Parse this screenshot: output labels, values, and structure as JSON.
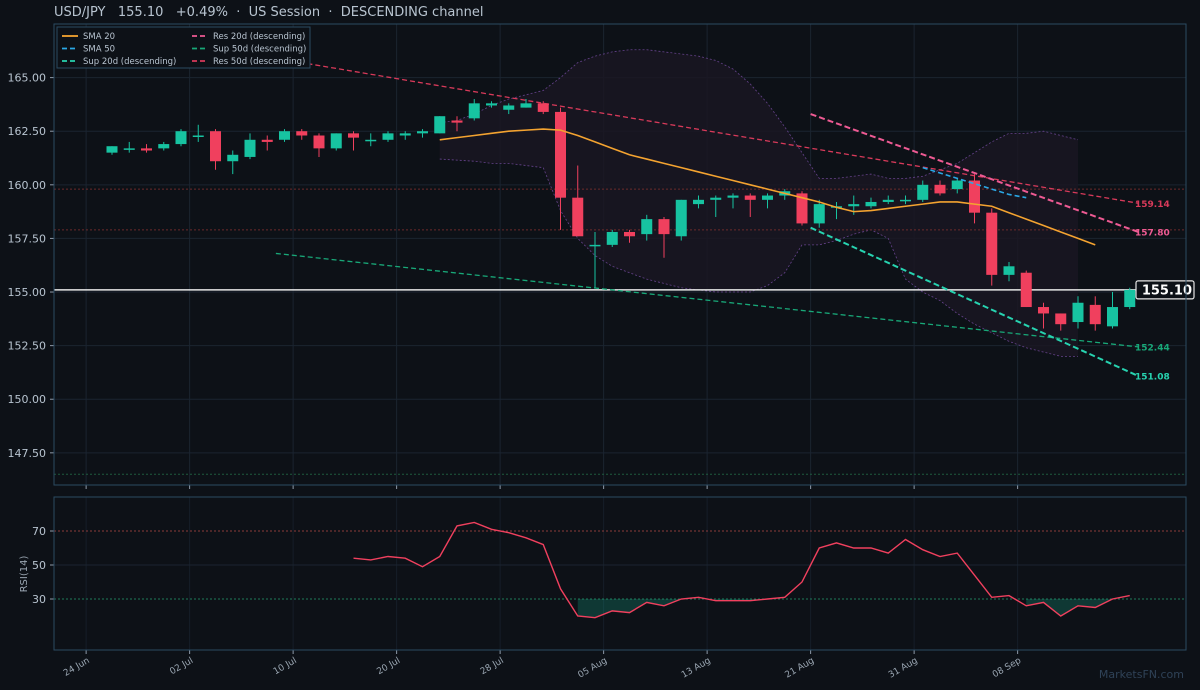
{
  "header": {
    "title": "USD/JPY   155.10   +0.49%  ·  US Session  ·  DESCENDING channel"
  },
  "watermark": "MarketsFN.com",
  "colors": {
    "background": "#0d1117",
    "up": "#17c3a1",
    "down": "#f0405e",
    "sma20": "#f4a330",
    "sma50": "#2aa8e6",
    "res20": "#ee5a93",
    "res50": "#d83a5a",
    "sup20": "#27d3b0",
    "sup50": "#18a878",
    "rsi": "#f0405e",
    "band": "#7a4fa8"
  },
  "chart_data": {
    "type": "candlestick",
    "symbol": "USD/JPY",
    "last_price": "155.10",
    "ylim": [
      146,
      167.5
    ],
    "yticks": [
      147.5,
      150,
      152.5,
      155,
      157.5,
      160,
      162.5,
      165
    ],
    "ytick_labels": [
      "147.50",
      "150.00",
      "152.50",
      "155.00",
      "157.50",
      "160.00",
      "162.50",
      "165.00"
    ],
    "xticks": [
      {
        "label": "24 Jun",
        "i": -1.5
      },
      {
        "label": "02 Jul",
        "i": 4.5
      },
      {
        "label": "10 Jul",
        "i": 10.5
      },
      {
        "label": "20 Jul",
        "i": 16.5
      },
      {
        "label": "28 Jul",
        "i": 22.5
      },
      {
        "label": "05 Aug",
        "i": 28.5
      },
      {
        "label": "13 Aug",
        "i": 34.5
      },
      {
        "label": "21 Aug",
        "i": 40.5
      },
      {
        "label": "31 Aug",
        "i": 46.5
      },
      {
        "label": "08 Sep",
        "i": 52.5
      }
    ],
    "candles": [
      {
        "o": 161.5,
        "h": 161.8,
        "l": 161.4,
        "c": 161.8
      },
      {
        "o": 161.7,
        "h": 162.0,
        "l": 161.5,
        "c": 161.7
      },
      {
        "o": 161.7,
        "h": 161.9,
        "l": 161.5,
        "c": 161.6
      },
      {
        "o": 161.7,
        "h": 162.0,
        "l": 161.6,
        "c": 161.9
      },
      {
        "o": 161.9,
        "h": 162.6,
        "l": 161.8,
        "c": 162.5
      },
      {
        "o": 162.3,
        "h": 162.8,
        "l": 162.0,
        "c": 162.3
      },
      {
        "o": 162.5,
        "h": 162.6,
        "l": 160.7,
        "c": 161.1
      },
      {
        "o": 161.1,
        "h": 161.6,
        "l": 160.5,
        "c": 161.4
      },
      {
        "o": 161.3,
        "h": 162.4,
        "l": 161.2,
        "c": 162.1
      },
      {
        "o": 162.1,
        "h": 162.3,
        "l": 161.6,
        "c": 162.0
      },
      {
        "o": 162.1,
        "h": 162.6,
        "l": 162.0,
        "c": 162.5
      },
      {
        "o": 162.5,
        "h": 162.6,
        "l": 162.1,
        "c": 162.3
      },
      {
        "o": 162.3,
        "h": 162.4,
        "l": 161.3,
        "c": 161.7
      },
      {
        "o": 161.7,
        "h": 162.4,
        "l": 161.6,
        "c": 162.4
      },
      {
        "o": 162.4,
        "h": 162.5,
        "l": 161.6,
        "c": 162.2
      },
      {
        "o": 162.1,
        "h": 162.4,
        "l": 161.8,
        "c": 162.1
      },
      {
        "o": 162.1,
        "h": 162.5,
        "l": 162.0,
        "c": 162.4
      },
      {
        "o": 162.3,
        "h": 162.5,
        "l": 162.1,
        "c": 162.4
      },
      {
        "o": 162.4,
        "h": 162.6,
        "l": 162.2,
        "c": 162.5
      },
      {
        "o": 162.4,
        "h": 163.2,
        "l": 162.4,
        "c": 163.2
      },
      {
        "o": 163.0,
        "h": 163.2,
        "l": 162.5,
        "c": 162.9
      },
      {
        "o": 163.1,
        "h": 164.0,
        "l": 163.0,
        "c": 163.8
      },
      {
        "o": 163.7,
        "h": 163.9,
        "l": 163.6,
        "c": 163.8
      },
      {
        "o": 163.5,
        "h": 163.8,
        "l": 163.3,
        "c": 163.7
      },
      {
        "o": 163.6,
        "h": 164.0,
        "l": 163.6,
        "c": 163.8
      },
      {
        "o": 163.8,
        "h": 163.9,
        "l": 163.3,
        "c": 163.4
      },
      {
        "o": 163.4,
        "h": 163.6,
        "l": 157.9,
        "c": 159.4
      },
      {
        "o": 159.4,
        "h": 160.9,
        "l": 157.6,
        "c": 157.6
      },
      {
        "o": 157.2,
        "h": 157.8,
        "l": 155.2,
        "c": 157.2
      },
      {
        "o": 157.2,
        "h": 157.9,
        "l": 157.1,
        "c": 157.8
      },
      {
        "o": 157.8,
        "h": 157.9,
        "l": 157.3,
        "c": 157.6
      },
      {
        "o": 157.7,
        "h": 158.6,
        "l": 157.4,
        "c": 158.4
      },
      {
        "o": 158.4,
        "h": 158.5,
        "l": 156.6,
        "c": 157.7
      },
      {
        "o": 157.6,
        "h": 159.3,
        "l": 157.4,
        "c": 159.3
      },
      {
        "o": 159.1,
        "h": 159.5,
        "l": 158.9,
        "c": 159.3
      },
      {
        "o": 159.3,
        "h": 159.5,
        "l": 158.5,
        "c": 159.4
      },
      {
        "o": 159.4,
        "h": 159.6,
        "l": 158.9,
        "c": 159.5
      },
      {
        "o": 159.5,
        "h": 159.6,
        "l": 158.5,
        "c": 159.3
      },
      {
        "o": 159.3,
        "h": 159.6,
        "l": 158.9,
        "c": 159.5
      },
      {
        "o": 159.5,
        "h": 159.8,
        "l": 159.3,
        "c": 159.7
      },
      {
        "o": 159.6,
        "h": 159.7,
        "l": 158.1,
        "c": 158.2
      },
      {
        "o": 158.2,
        "h": 159.3,
        "l": 158.0,
        "c": 159.1
      },
      {
        "o": 159.0,
        "h": 159.2,
        "l": 158.4,
        "c": 159.0
      },
      {
        "o": 159.0,
        "h": 159.5,
        "l": 158.6,
        "c": 159.1
      },
      {
        "o": 159.0,
        "h": 159.4,
        "l": 158.9,
        "c": 159.2
      },
      {
        "o": 159.2,
        "h": 159.5,
        "l": 159.1,
        "c": 159.3
      },
      {
        "o": 159.3,
        "h": 159.5,
        "l": 159.1,
        "c": 159.3
      },
      {
        "o": 159.3,
        "h": 160.2,
        "l": 159.2,
        "c": 160.0
      },
      {
        "o": 160.0,
        "h": 160.2,
        "l": 159.5,
        "c": 159.6
      },
      {
        "o": 159.8,
        "h": 160.3,
        "l": 159.6,
        "c": 160.2
      },
      {
        "o": 160.2,
        "h": 160.5,
        "l": 158.2,
        "c": 158.7
      },
      {
        "o": 158.7,
        "h": 158.9,
        "l": 155.3,
        "c": 155.8
      },
      {
        "o": 155.8,
        "h": 156.4,
        "l": 155.5,
        "c": 156.2
      },
      {
        "o": 155.9,
        "h": 156.0,
        "l": 154.3,
        "c": 154.3
      },
      {
        "o": 154.3,
        "h": 154.5,
        "l": 153.3,
        "c": 154.0
      },
      {
        "o": 154.0,
        "h": 154.0,
        "l": 153.2,
        "c": 153.5
      },
      {
        "o": 153.6,
        "h": 154.8,
        "l": 153.3,
        "c": 154.5
      },
      {
        "o": 154.4,
        "h": 154.8,
        "l": 153.2,
        "c": 153.5
      },
      {
        "o": 153.4,
        "h": 155.0,
        "l": 153.3,
        "c": 154.3
      },
      {
        "o": 154.3,
        "h": 155.2,
        "l": 154.2,
        "c": 155.1
      }
    ],
    "sma20": {
      "name": "SMA 20",
      "start": 19,
      "values": [
        162.1,
        162.2,
        162.3,
        162.4,
        162.5,
        162.55,
        162.6,
        162.55,
        162.3,
        162.0,
        161.7,
        161.4,
        161.2,
        161.0,
        160.8,
        160.6,
        160.4,
        160.2,
        160.0,
        159.8,
        159.6,
        159.4,
        159.2,
        158.95,
        158.75,
        158.8,
        158.9,
        159.0,
        159.1,
        159.2,
        159.2,
        159.1,
        159.0,
        158.7,
        158.4,
        158.1,
        157.8,
        157.5,
        157.2
      ]
    },
    "sma50": {
      "name": "SMA 50",
      "start": 47,
      "values": [
        160.8,
        160.55,
        160.3,
        160.05,
        159.8,
        159.55,
        159.4
      ]
    },
    "bands": {
      "start": 19,
      "upper": [
        162.9,
        163.0,
        163.3,
        163.7,
        164.0,
        164.2,
        164.4,
        165.0,
        165.7,
        166.0,
        166.2,
        166.3,
        166.3,
        166.2,
        166.1,
        166.0,
        165.8,
        165.4,
        164.7,
        163.8,
        162.7,
        161.5,
        160.3,
        160.3,
        160.4,
        160.5,
        160.3,
        160.3,
        160.4,
        160.7,
        161.0,
        161.5,
        162.0,
        162.4,
        162.4,
        162.5,
        162.3,
        162.1
      ],
      "lower": [
        161.2,
        161.15,
        161.1,
        161.0,
        161.0,
        160.9,
        160.8,
        158.8,
        157.5,
        156.7,
        156.2,
        155.9,
        155.6,
        155.4,
        155.2,
        155.1,
        155.0,
        155.0,
        155.0,
        155.3,
        155.9,
        157.2,
        157.2,
        157.4,
        157.7,
        157.9,
        157.5,
        155.6,
        155.0,
        154.6,
        154.0,
        153.5,
        153.1,
        152.7,
        152.4,
        152.2,
        152.0,
        152.0
      ]
    },
    "res20": {
      "name": "Res 20d (descending)",
      "i0": 40.5,
      "v0": 163.3,
      "i1": 59.5,
      "v1": 157.8,
      "label": "157.80"
    },
    "res50": {
      "name": "Res 50d (descending)",
      "i0": 9.5,
      "v0": 165.9,
      "i1": 59.5,
      "v1": 159.14,
      "label": "159.14"
    },
    "sup20": {
      "name": "Sup 20d (descending)",
      "i0": 40.5,
      "v0": 158.0,
      "i1": 59.5,
      "v1": 151.08,
      "label": "151.08"
    },
    "sup50": {
      "name": "Sup 50d (descending)",
      "i0": 9.5,
      "v0": 156.8,
      "i1": 59.5,
      "v1": 152.44,
      "label": "152.44"
    },
    "hlines": [
      {
        "value": 159.8,
        "color": "#6b2b2b"
      },
      {
        "value": 157.9,
        "color": "#6b2b2b"
      },
      {
        "value": 146.5,
        "color": "#1f5a3f"
      }
    ],
    "legend": [
      {
        "key": "sma20",
        "label": "SMA 20",
        "dash": ""
      },
      {
        "key": "res20",
        "label": "Res 20d (descending)",
        "dash": "5,3"
      },
      {
        "key": "sma50",
        "label": "SMA 50",
        "dash": "5,3"
      },
      {
        "key": "sup50",
        "label": "Sup 50d (descending)",
        "dash": "5,3"
      },
      {
        "key": "sup20",
        "label": "Sup 20d (descending)",
        "dash": "5,3"
      },
      {
        "key": "res50",
        "label": "Res 50d (descending)",
        "dash": "5,3"
      }
    ],
    "legend_placement": "top-left",
    "grid": true,
    "rsi": {
      "ylabel": "RSI(14)",
      "ylim": [
        0,
        90
      ],
      "ticks": [
        30,
        50,
        70
      ],
      "overbought": 70,
      "oversold": 30,
      "start": 14,
      "values": [
        54,
        53,
        55,
        54,
        49,
        55,
        73,
        75,
        71,
        69,
        66,
        62,
        36,
        20,
        19,
        23,
        22,
        28,
        26,
        30,
        31,
        29,
        29,
        29,
        30,
        31,
        40,
        60,
        63,
        60,
        60,
        57,
        65,
        59,
        55,
        57,
        44,
        31,
        32,
        26,
        28,
        20,
        26,
        25,
        30,
        32
      ]
    }
  }
}
